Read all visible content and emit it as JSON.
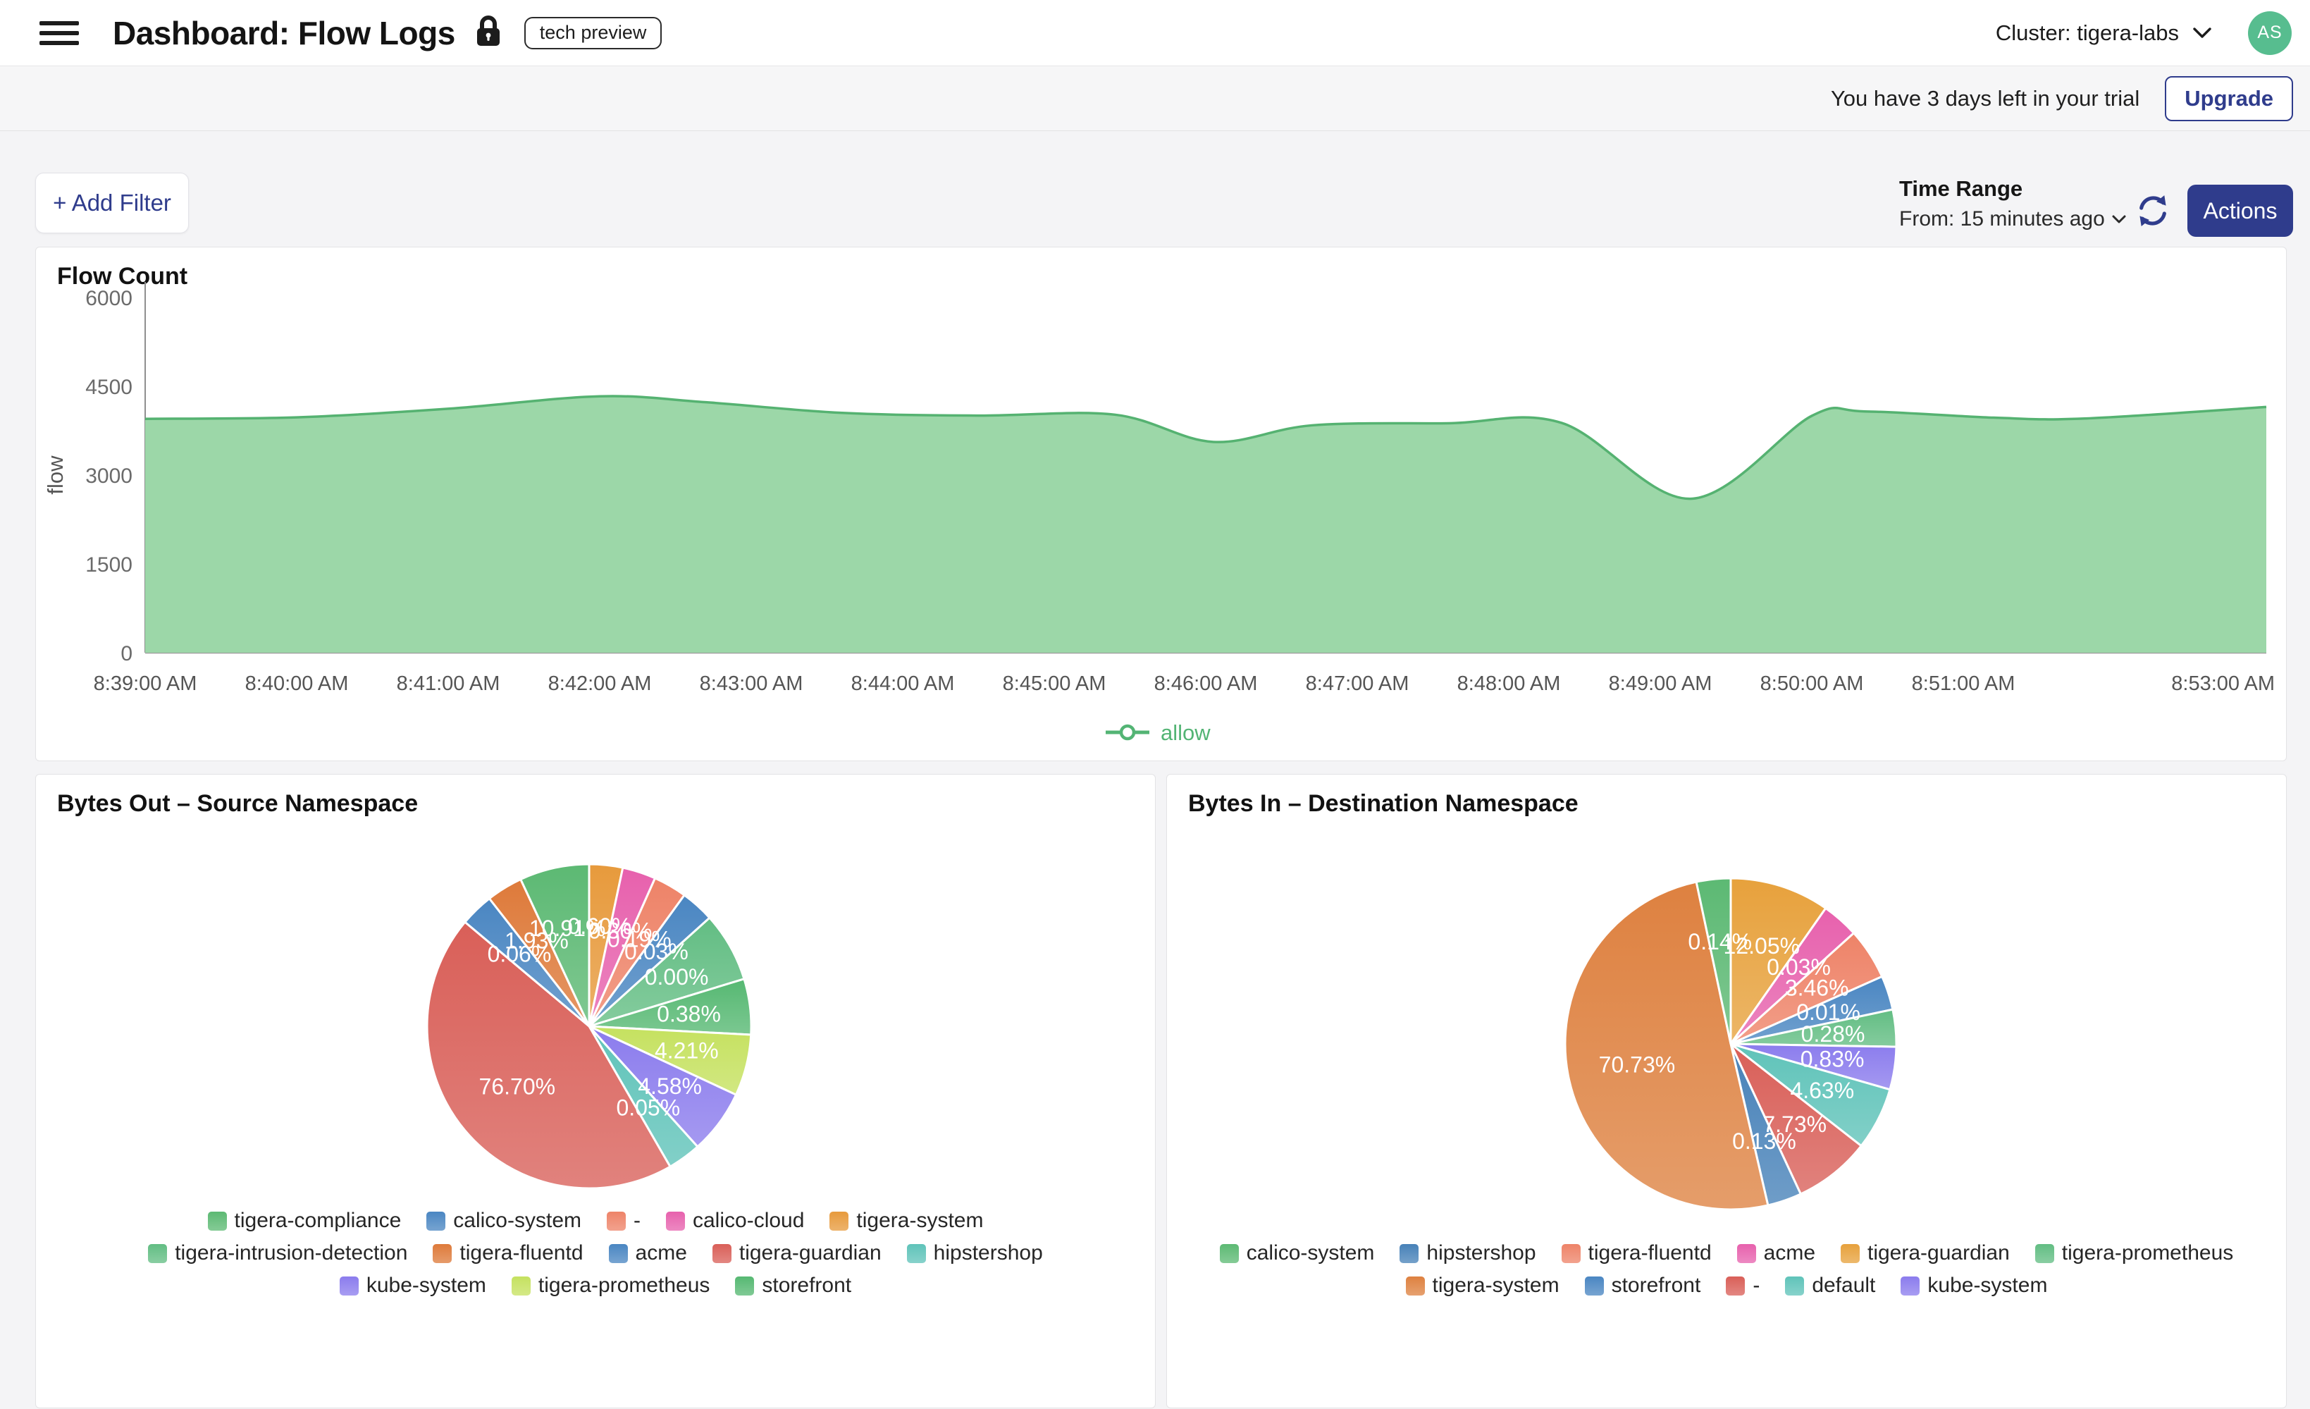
{
  "header": {
    "title": "Dashboard: Flow Logs",
    "badge": "tech preview",
    "cluster_label": "Cluster: tigera-labs",
    "avatar_initials": "AS"
  },
  "trial_banner": {
    "message": "You have 3 days left in your trial",
    "upgrade_label": "Upgrade"
  },
  "toolbar": {
    "add_filter_label": "+ Add Filter",
    "time_range_title": "Time Range",
    "time_range_value": "From: 15 minutes ago",
    "actions_label": "Actions"
  },
  "colors": {
    "accent_navy": "#2f3c8c",
    "avatar_green": "#57bd8f",
    "area_fill": "#9cd7a8",
    "area_line": "#55b271",
    "allow_green": "#53b474"
  },
  "chart_data": [
    {
      "id": "flow",
      "type": "area",
      "title": "Flow Count",
      "ylabel": "flow",
      "ylim": [
        0,
        6000
      ],
      "yticks": [
        0,
        1500,
        3000,
        4500,
        6000
      ],
      "x_unit": "minutes after 8:39:00 AM",
      "xticks": [
        {
          "m": 0,
          "label": "8:39:00 AM"
        },
        {
          "m": 1,
          "label": "8:40:00 AM"
        },
        {
          "m": 2,
          "label": "8:41:00 AM"
        },
        {
          "m": 3,
          "label": "8:42:00 AM"
        },
        {
          "m": 4,
          "label": "8:43:00 AM"
        },
        {
          "m": 5,
          "label": "8:44:00 AM"
        },
        {
          "m": 6,
          "label": "8:45:00 AM"
        },
        {
          "m": 7,
          "label": "8:46:00 AM"
        },
        {
          "m": 8,
          "label": "8:47:00 AM"
        },
        {
          "m": 9,
          "label": "8:48:00 AM"
        },
        {
          "m": 10,
          "label": "8:49:00 AM"
        },
        {
          "m": 11,
          "label": "8:50:00 AM"
        },
        {
          "m": 12,
          "label": "8:51:00 AM"
        },
        {
          "m": 14,
          "label": "8:53:00 AM"
        }
      ],
      "series": [
        {
          "name": "allow",
          "color": "#55b271",
          "fill": "#9cd7a8",
          "points": [
            [
              0,
              3950
            ],
            [
              1,
              3975
            ],
            [
              2,
              4120
            ],
            [
              3,
              4330
            ],
            [
              3.7,
              4230
            ],
            [
              4.6,
              4050
            ],
            [
              5.5,
              4005
            ],
            [
              6.4,
              4020
            ],
            [
              7.05,
              3560
            ],
            [
              7.7,
              3840
            ],
            [
              8.6,
              3875
            ],
            [
              9.35,
              3880
            ],
            [
              10.2,
              2600
            ],
            [
              11.0,
              4000
            ],
            [
              11.35,
              4075
            ],
            [
              12.2,
              3970
            ],
            [
              12.8,
              3955
            ],
            [
              14,
              4150
            ]
          ]
        }
      ],
      "legend": [
        {
          "name": "allow",
          "color": "#53b474"
        }
      ],
      "legend_position": "bottom",
      "grid": false
    },
    {
      "id": "bytes-out",
      "type": "pie",
      "title": "Bytes Out – Source Namespace",
      "slices": [
        {
          "name": "tigera-system",
          "pct": "0.60%",
          "value": 0.6,
          "color": "#e79a3c",
          "display_angle": 12
        },
        {
          "name": "calico-cloud",
          "pct": "0.36%",
          "value": 0.36,
          "color": "#e761ad",
          "display_angle": 12
        },
        {
          "name": "-",
          "pct": "0.19%",
          "value": 0.19,
          "color": "#ee8368",
          "display_angle": 12
        },
        {
          "name": "acme",
          "pct": "0.03%",
          "value": 0.03,
          "color": "#4a86c2",
          "display_angle": 12
        },
        {
          "name": "tigera-intrusion-detection",
          "pct": "0.00%",
          "value": 0.0,
          "color": "#62bd83",
          "display_angle": 25
        },
        {
          "name": "storefront",
          "pct": "0.38%",
          "value": 0.38,
          "color": "#56b872",
          "display_angle": 20
        },
        {
          "name": "tigera-prometheus",
          "pct": "4.21%",
          "value": 4.21,
          "color": "#c5e15f",
          "display_angle": 22
        },
        {
          "name": "kube-system",
          "pct": "4.58%",
          "value": 4.58,
          "color": "#8b7ced",
          "display_angle": 23
        },
        {
          "name": "hipstershop",
          "pct": "0.05%",
          "value": 0.05,
          "color": "#5fc3b9",
          "display_angle": 12
        },
        {
          "name": "tigera-guardian",
          "pct": "76.70%",
          "value": 76.7,
          "color": "#d95f58",
          "display_angle": 160
        },
        {
          "name": "calico-system",
          "pct": "0.06%",
          "value": 0.06,
          "color": "#4a86c2",
          "display_angle": 12
        },
        {
          "name": "tigera-fluentd",
          "pct": "1.93%",
          "value": 1.93,
          "color": "#de7a3a",
          "display_angle": 13
        },
        {
          "name": "tigera-compliance",
          "pct": "10.91%",
          "value": 10.91,
          "color": "#5cb973",
          "display_angle": 25
        }
      ],
      "legend_order": [
        "tigera-compliance",
        "calico-system",
        "-",
        "calico-cloud",
        "tigera-system",
        "tigera-intrusion-detection",
        "tigera-fluentd",
        "acme",
        "tigera-guardian",
        "hipstershop",
        "kube-system",
        "tigera-prometheus",
        "storefront"
      ]
    },
    {
      "id": "bytes-in",
      "type": "pie",
      "title": "Bytes In – Destination Namespace",
      "slices": [
        {
          "name": "tigera-guardian",
          "pct": "12.05%",
          "value": 12.05,
          "color": "#e7a13c",
          "display_angle": 35
        },
        {
          "name": "acme",
          "pct": "0.03%",
          "value": 0.03,
          "color": "#e761ad",
          "display_angle": 13
        },
        {
          "name": "tigera-fluentd",
          "pct": "3.46%",
          "value": 3.46,
          "color": "#ee8368",
          "display_angle": 18
        },
        {
          "name": "storefront",
          "pct": "0.01%",
          "value": 0.01,
          "color": "#4a86c2",
          "display_angle": 12
        },
        {
          "name": "tigera-prometheus",
          "pct": "0.28%",
          "value": 0.28,
          "color": "#62bd83",
          "display_angle": 13
        },
        {
          "name": "kube-system",
          "pct": "0.83%",
          "value": 0.83,
          "color": "#8b7ced",
          "display_angle": 15
        },
        {
          "name": "default",
          "pct": "4.63%",
          "value": 4.63,
          "color": "#5fc3b9",
          "display_angle": 22
        },
        {
          "name": "-",
          "pct": "7.73%",
          "value": 7.73,
          "color": "#d95f58",
          "display_angle": 27
        },
        {
          "name": "hipstershop",
          "pct": "0.13%",
          "value": 0.13,
          "color": "#4781b8",
          "display_angle": 12
        },
        {
          "name": "tigera-system",
          "pct": "70.73%",
          "value": 70.73,
          "color": "#de8140",
          "display_angle": 181
        },
        {
          "name": "calico-system",
          "pct": "0.14%",
          "value": 0.14,
          "color": "#5cb973",
          "display_angle": 12
        }
      ],
      "legend_order": [
        "calico-system",
        "hipstershop",
        "tigera-fluentd",
        "acme",
        "tigera-guardian",
        "tigera-prometheus",
        "tigera-system",
        "storefront",
        "-",
        "default",
        "kube-system"
      ]
    }
  ]
}
